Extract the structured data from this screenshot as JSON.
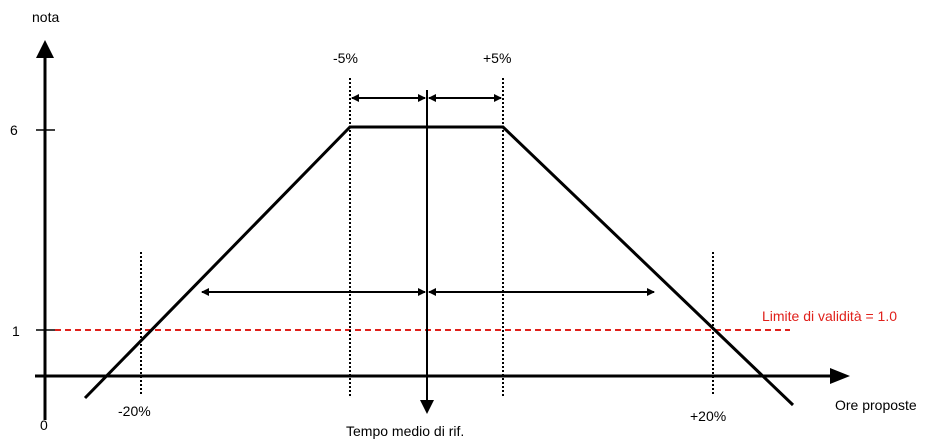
{
  "axes": {
    "y_label": "nota",
    "x_label": "Ore proposte",
    "origin_label": "0",
    "y_tick_high": "6",
    "y_tick_low": "1"
  },
  "markers": {
    "minus5": "-5%",
    "plus5": "+5%",
    "minus20": "-20%",
    "plus20": "+20%"
  },
  "center_label": "Tempo medio di rif.",
  "limit_label": "Limite di validità = 1.0",
  "colors": {
    "line": "#000000",
    "limit": "#e0201b"
  }
}
